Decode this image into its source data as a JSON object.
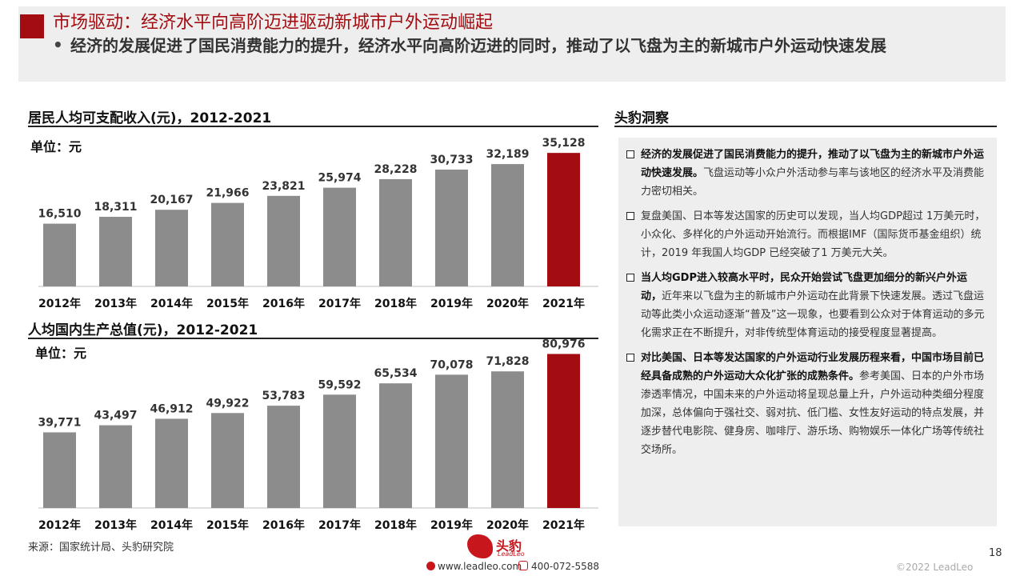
{
  "header": {
    "title": "市场驱动：经济水平向高阶迈进驱动新城市户外运动崛起",
    "bullet": "•",
    "subtitle": "经济的发展促进了国民消费能力的提升，经济水平向高阶迈进的同时，推动了以飞盘为主的新城市户外运动快速发展"
  },
  "colors": {
    "accent": "#a30d12",
    "bar_gray": "#8c8c8c",
    "bar_highlight": "#a30d12"
  },
  "chart_data": [
    {
      "type": "bar",
      "title": "居民人均可支配收入(元)，2012-2021",
      "unit_label": "单位：元",
      "categories": [
        "2012年",
        "2013年",
        "2014年",
        "2015年",
        "2016年",
        "2017年",
        "2018年",
        "2019年",
        "2020年",
        "2021年"
      ],
      "values": [
        16510,
        18311,
        20167,
        21966,
        23821,
        25974,
        28228,
        30733,
        32189,
        35128
      ],
      "value_labels": [
        "16,510",
        "18,311",
        "20,167",
        "21,966",
        "23,821",
        "25,974",
        "28,228",
        "30,733",
        "32,189",
        "35,128"
      ],
      "highlight_index": 9,
      "ylim": [
        0,
        40000
      ],
      "grid": false
    },
    {
      "type": "bar",
      "title": "人均国内生产总值(元)，2012-2021",
      "unit_label": "单位：元",
      "categories": [
        "2012年",
        "2013年",
        "2014年",
        "2015年",
        "2016年",
        "2017年",
        "2018年",
        "2019年",
        "2020年",
        "2021年"
      ],
      "values": [
        39771,
        43497,
        46912,
        49922,
        53783,
        59592,
        65534,
        70078,
        71828,
        80976
      ],
      "value_labels": [
        "39,771",
        "43,497",
        "46,912",
        "49,922",
        "53,783",
        "59,592",
        "65,534",
        "70,078",
        "71,828",
        "80,976"
      ],
      "highlight_index": 9,
      "ylim": [
        0,
        90000
      ],
      "grid": false
    }
  ],
  "insights": {
    "title": "头豹洞察",
    "items": [
      {
        "bold": "经济的发展促进了国民消费能力的提升，推动了以飞盘为主的新城市户外运动快速发展。",
        "text": "飞盘运动等小众户外活动参与率与该地区的经济水平及消费能力密切相关。"
      },
      {
        "bold": "",
        "text": "复盘美国、日本等发达国家的历史可以发现，当人均GDP超过 1万美元时，小众化、多样化的户外运动开始流行。而根据IMF（国际货币基金组织）统计，2019 年我国人均GDP 已经突破了1 万美元大关。"
      },
      {
        "bold": "当人均GDP进入较高水平时，民众开始尝试飞盘更加细分的新兴户外运动，",
        "text": "近年来以飞盘为主的新城市户外运动在此背景下快速发展。透过飞盘运动等此类小众运动逐渐“普及”这一现象，也要看到公众对于体育运动的多元化需求正在不断提升，对非传统型体育运动的接受程度显著提高。"
      },
      {
        "bold": "对比美国、日本等发达国家的户外运动行业发展历程来看，中国市场目前已经具备成熟的户外运动大众化扩张的成熟条件。",
        "text": "参考美国、日本的户外市场渗透率情况，中国未来的户外运动将呈现总量上升，户外运动种类细分程度加深，总体偏向于强社交、弱对抗、低门槛、女性友好运动的特点发展，并逐步替代电影院、健身房、咖啡厅、游乐场、购物娱乐一体化广场等传统社交场所。"
      }
    ]
  },
  "footer": {
    "source": "来源：国家统计局、头豹研究院",
    "logo_cn": "头豹",
    "logo_en": "LeadLeo",
    "website": "www.leadleo.com",
    "phone": "400-072-5588",
    "page_number": "18",
    "copyright": "©2022 LeadLeo"
  }
}
